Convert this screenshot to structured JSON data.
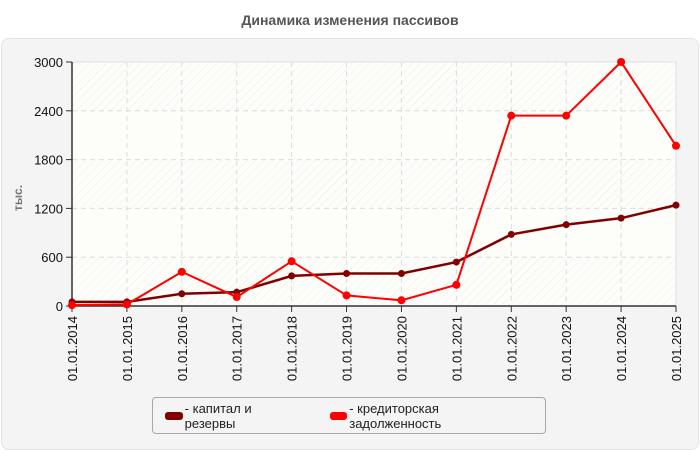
{
  "chart_data": {
    "type": "line",
    "title": "Динамика изменения пассивов",
    "xlabel": "",
    "ylabel": "тыс.",
    "ylim": [
      0,
      3000
    ],
    "yticks": [
      0,
      600,
      1200,
      1800,
      2400,
      3000
    ],
    "grid": true,
    "legend_position": "bottom",
    "x": [
      "01.01.2014",
      "01.01.2015",
      "01.01.2016",
      "01.01.2017",
      "01.01.2018",
      "01.01.2019",
      "01.01.2020",
      "01.01.2021",
      "01.01.2022",
      "01.01.2023",
      "01.01.2024",
      "01.01.2025"
    ],
    "series": [
      {
        "name": "капитал и резервы",
        "color": "#800000",
        "values": [
          50,
          50,
          150,
          170,
          370,
          400,
          400,
          540,
          880,
          1000,
          1080,
          1240
        ]
      },
      {
        "name": "кредиторская задолженность",
        "color": "#ff0000",
        "values": [
          10,
          20,
          420,
          110,
          550,
          130,
          70,
          260,
          2340,
          2340,
          3000,
          1970
        ]
      }
    ]
  },
  "legend": {
    "items": [
      {
        "label": "- капитал и резервы",
        "color": "#800000"
      },
      {
        "label": "- кредиторская задолженность",
        "color": "#ff0000"
      }
    ]
  }
}
